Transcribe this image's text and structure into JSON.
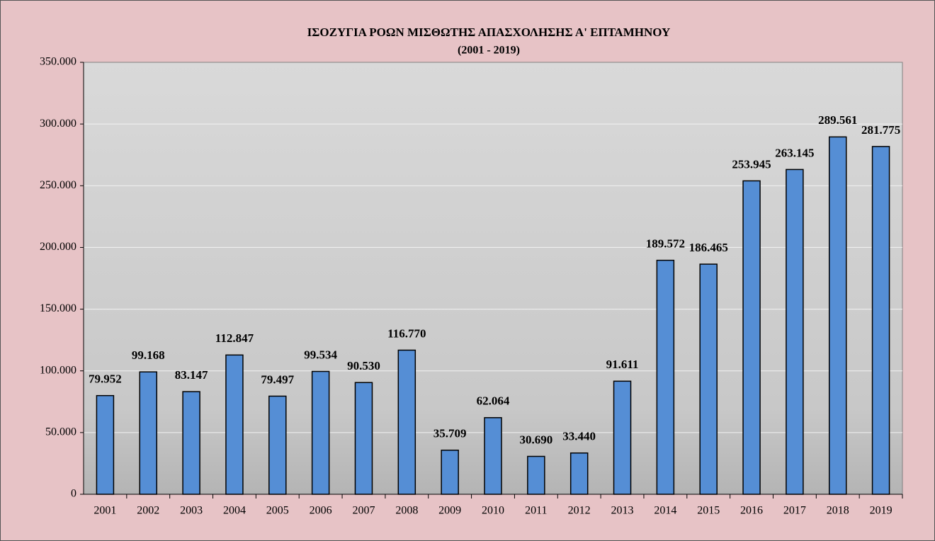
{
  "chart_data": {
    "type": "bar",
    "title": "ΙΣΟΖΥΓΙΑ ΡΟΩΝ ΜΙΣΘΩΤΗΣ ΑΠΑΣΧΟΛΗΣΗΣ Α' ΕΠΤΑΜΗΝΟΥ",
    "subtitle": "(2001 - 2019)",
    "categories": [
      "2001",
      "2002",
      "2003",
      "2004",
      "2005",
      "2006",
      "2007",
      "2008",
      "2009",
      "2010",
      "2011",
      "2012",
      "2013",
      "2014",
      "2015",
      "2016",
      "2017",
      "2018",
      "2019"
    ],
    "values": [
      79952,
      99168,
      83147,
      112847,
      79497,
      99534,
      90530,
      116770,
      35709,
      62064,
      30690,
      33440,
      91611,
      189572,
      186465,
      253945,
      263145,
      289561,
      281775
    ],
    "value_labels": [
      "79.952",
      "99.168",
      "83.147",
      "112.847",
      "79.497",
      "99.534",
      "90.530",
      "116.770",
      "35.709",
      "62.064",
      "30.690",
      "33.440",
      "91.611",
      "189.572",
      "186.465",
      "253.945",
      "263.145",
      "289.561",
      "281.775"
    ],
    "color": "#558ed5",
    "ylim": [
      0,
      350000
    ],
    "yticks": [
      0,
      {
        "value": 50000,
        "label": "50.000"
      },
      {
        "value": 100000,
        "label": "100.000"
      },
      {
        "value": 150000,
        "label": "150.000"
      },
      {
        "value": 200000,
        "label": "200.000"
      },
      {
        "value": 250000,
        "label": "250.000"
      },
      {
        "value": 300000,
        "label": "300.000"
      },
      {
        "value": 350000,
        "label": "350.000"
      }
    ],
    "grid": true
  }
}
